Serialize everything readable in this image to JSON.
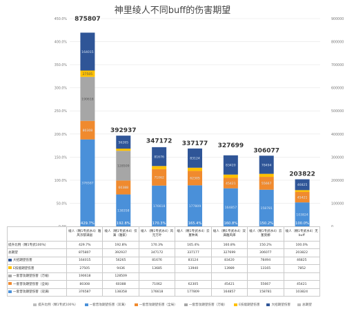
{
  "chart_data": {
    "type": "bar",
    "title": "神里绫人不同buff的伤害期望",
    "categories": [
      "绫人（精1专武水4）雅风浓郁满层",
      "绫人（精1专武水4）仅满（雅家）",
      "绫人（精1专武水4）风元万叶",
      "绫人（精1专武水4）云堇钟离",
      "绫人（精1专武水4）双满雅风库",
      "绫人（精1专武水4）云堇莫娜",
      "绫人（精1专武水4）无buff"
    ],
    "left_axis": {
      "ticks": [
        "0.0%",
        "50.0%",
        "100.0%",
        "150.0%",
        "200.0%",
        "250.0%",
        "300.0%",
        "350.0%",
        "400.0%",
        "450.0%"
      ],
      "max": 450
    },
    "right_axis": {
      "ticks": [
        "0",
        "100000",
        "200000",
        "300000",
        "400000",
        "500000",
        "600000",
        "700000",
        "800000",
        "900000"
      ],
      "max": 900000
    },
    "series": [
      {
        "name": "一套普攻期望伤害（双满）",
        "color": "#4a90d9",
        "values": [
          376587,
          138358,
          176618,
          177809,
          164857,
          158781,
          103824
        ],
        "labels": [
          "376587",
          "138358",
          "176618",
          "177809",
          "164857",
          "158781",
          "103824"
        ]
      },
      {
        "name": "一套普攻期望伤害（全局）",
        "color": "#f08a2e",
        "values": [
          80308,
          60388,
          71062,
          62305,
          45421,
          55667,
          45421
        ],
        "labels": [
          "80308",
          "60388",
          "71062",
          "62305",
          "45421",
          "55667",
          "45421"
        ]
      },
      {
        "name": "一套普攻期望伤害（万绫）",
        "color": "#a6a6a6",
        "values": [
          190618,
          128509,
          0,
          0,
          0,
          0,
          0
        ],
        "labels": [
          "190618",
          "128509",
          "",
          "",
          "",
          "",
          ""
        ]
      },
      {
        "name": "E技能期望伤害",
        "color": "#ffc000",
        "values": [
          27505,
          9436,
          13685,
          13940,
          13989,
          13165,
          7852
        ],
        "labels": [
          "27505",
          "9436",
          "13685",
          "13940",
          "13989",
          "13165",
          "7852"
        ]
      },
      {
        "name": "大招期望伤害",
        "color": "#2f5597",
        "values": [
          164015,
          56265,
          81676,
          83124,
          83420,
          78494,
          46825
        ],
        "labels": [
          "164015",
          "56265",
          "81676",
          "83124",
          "83420",
          "78494",
          "46825"
        ]
      }
    ],
    "totals": {
      "name": "总期望",
      "values": [
        875807,
        392937,
        347172,
        337177,
        327699,
        306077,
        203822
      ]
    },
    "ratio": {
      "name": "提升比例（精1专武100%）",
      "values": [
        429.7,
        192.8,
        170.3,
        165.4,
        160.8,
        150.2,
        100.0
      ],
      "labels": [
        "429.7%",
        "192.8%",
        "170.3%",
        "165.4%",
        "160.8%",
        "150.2%",
        "100.0%"
      ]
    }
  },
  "table": {
    "rows": [
      {
        "label": "提升比例（精1专武100%）",
        "color": "",
        "values": [
          "429.7%",
          "192.8%",
          "170.3%",
          "165.4%",
          "160.8%",
          "150.2%",
          "100.0%"
        ]
      },
      {
        "label": "总期望",
        "color": "",
        "values": [
          "875807",
          "392937",
          "347172",
          "337177",
          "327699",
          "306077",
          "203822"
        ]
      },
      {
        "label": "大招期望伤害",
        "color": "#2f5597",
        "values": [
          "164015",
          "56265",
          "81676",
          "83124",
          "83420",
          "78494",
          "46825"
        ]
      },
      {
        "label": "E技能期望伤害",
        "color": "#ffc000",
        "values": [
          "27505",
          "9436",
          "13685",
          "13940",
          "13989",
          "13165",
          "7852"
        ]
      },
      {
        "label": "一套普攻期望伤害（万绫）",
        "color": "#a6a6a6",
        "values": [
          "190618",
          "128509",
          "",
          "",
          "",
          "",
          ""
        ]
      },
      {
        "label": "一套普攻期望伤害（全局）",
        "color": "#f08a2e",
        "values": [
          "80308",
          "60388",
          "71062",
          "62305",
          "45421",
          "55667",
          "45421"
        ]
      },
      {
        "label": "一套普攻期望伤害（双满）",
        "color": "#4a90d9",
        "values": [
          "376587",
          "138358",
          "176618",
          "177809",
          "164857",
          "158781",
          "103824"
        ]
      }
    ]
  },
  "legend": [
    {
      "label": "提升比例（精1专武100%）",
      "color": "#bdbdbd"
    },
    {
      "label": "一套普攻期望伤害（双满）",
      "color": "#4a90d9"
    },
    {
      "label": "一套普攻期望伤害（全局）",
      "color": "#f08a2e"
    },
    {
      "label": "一套普攻期望伤害（万绫）",
      "color": "#a6a6a6"
    },
    {
      "label": "E技能期望伤害",
      "color": "#ffc000"
    },
    {
      "label": "大招期望伤害",
      "color": "#2f5597"
    },
    {
      "label": "总期望",
      "color": "#bdbdbd"
    }
  ]
}
